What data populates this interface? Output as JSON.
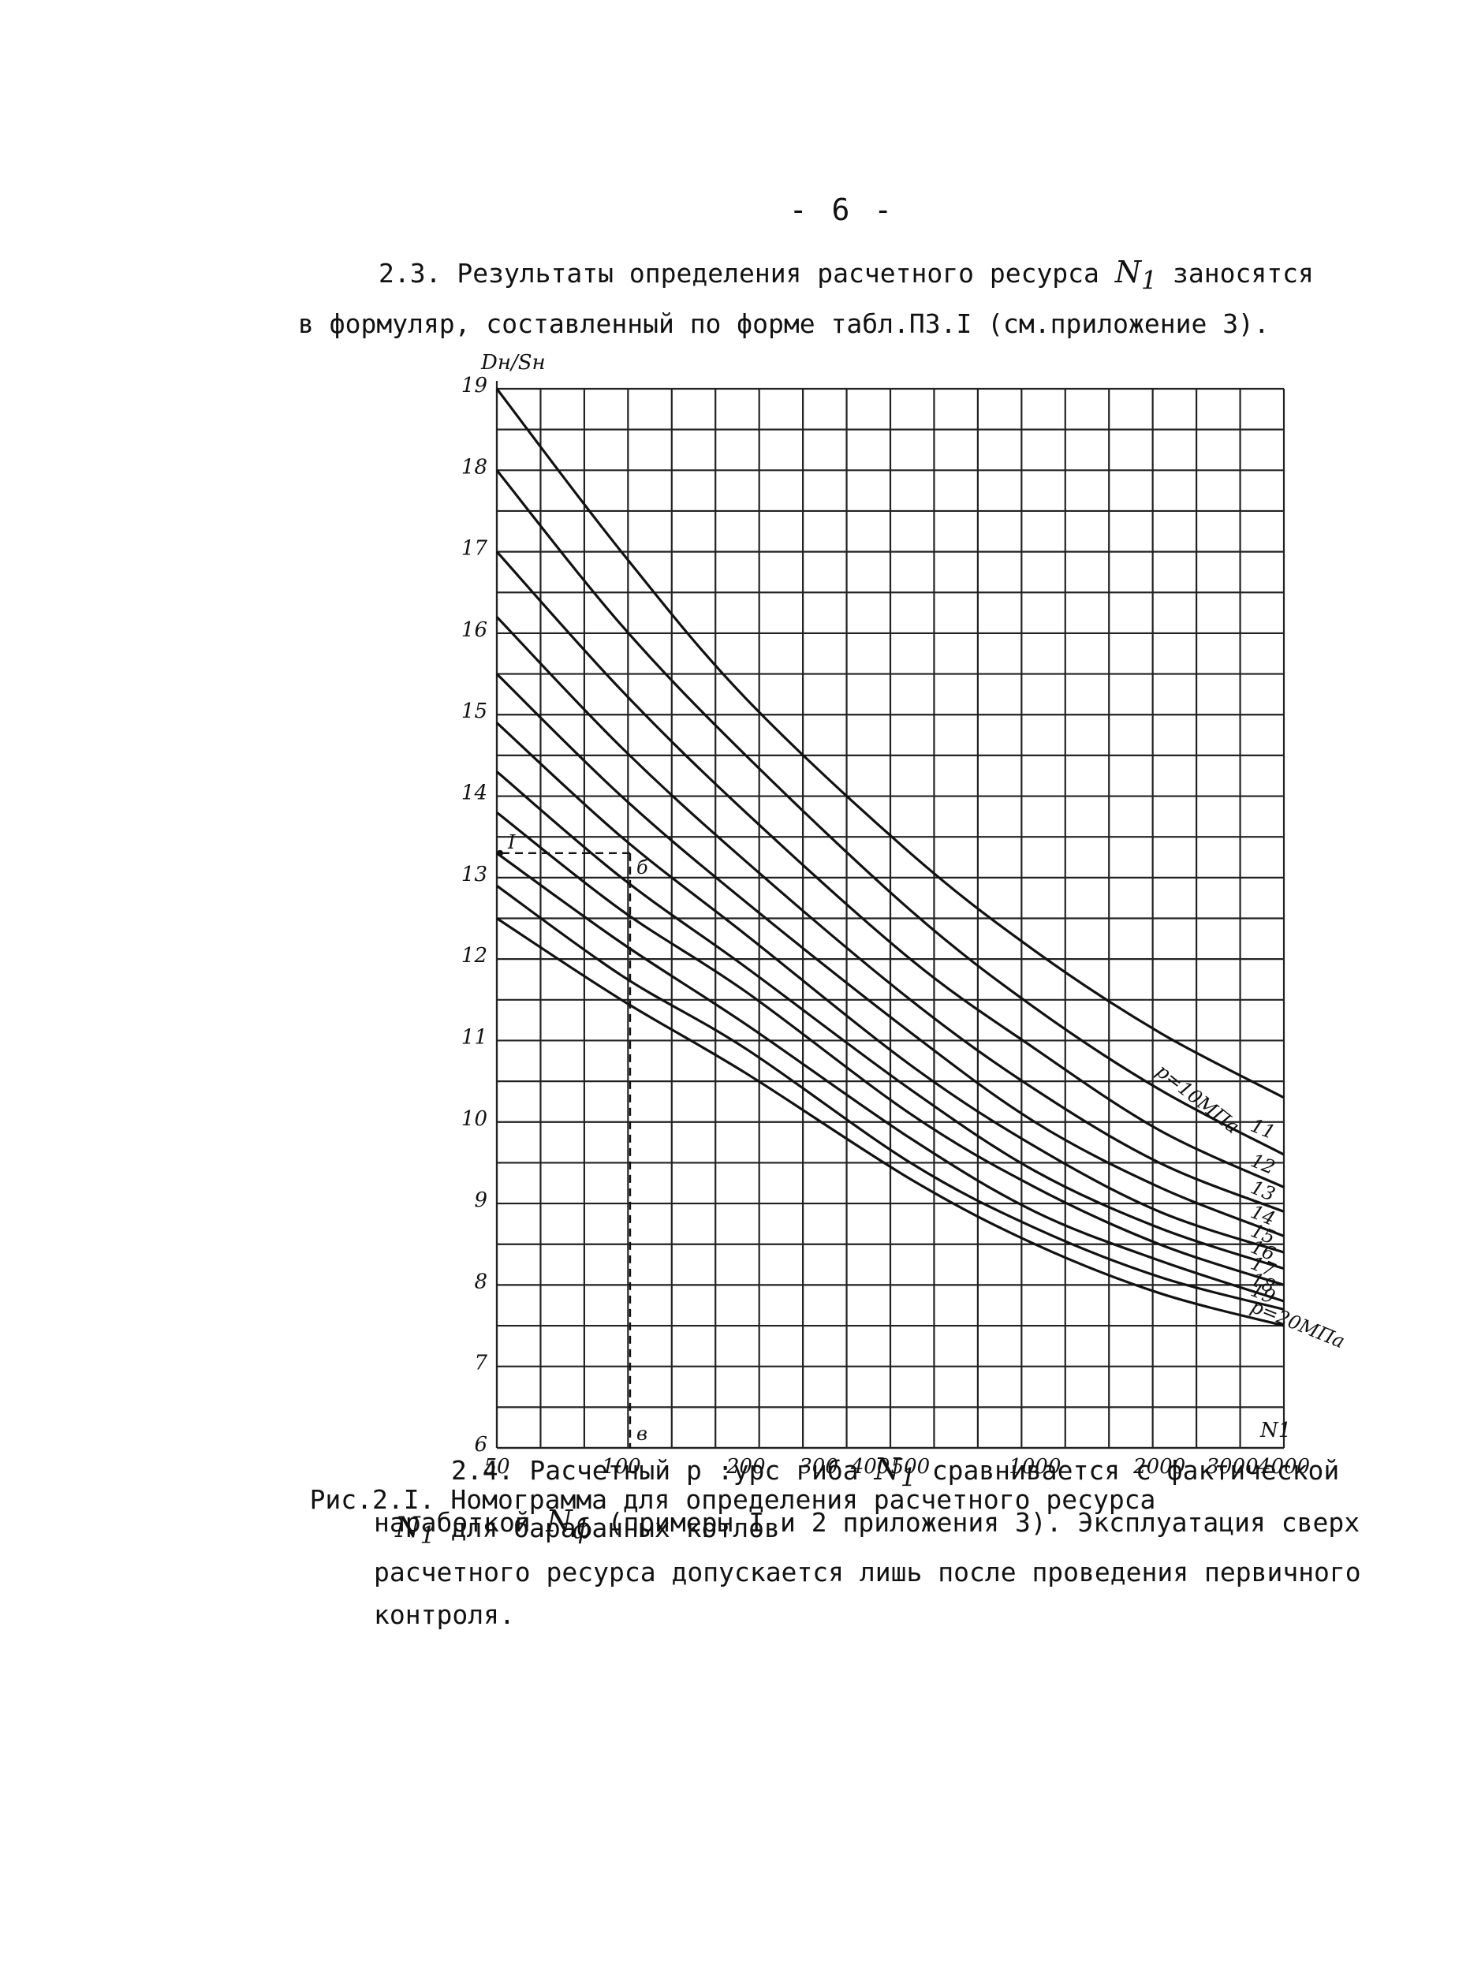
{
  "page_number": "- 6 -",
  "paragraph_2_3": {
    "line1_before": "2.3. Результаты определения расчетного ресурса ",
    "symbol": "N",
    "symbol_sub": "1",
    "line1_after": " заносятся",
    "line2": "в формуляр, составленный по форме табл.П3.I (см.приложение 3)."
  },
  "nomogram": {
    "y_axis_label": "Dн/Sн",
    "x_axis_label": "N1",
    "y_ticks": [
      "6",
      "7",
      "8",
      "9",
      "10",
      "11",
      "12",
      "13",
      "14",
      "15",
      "16",
      "17",
      "18",
      "19"
    ],
    "x_ticks": [
      "50",
      "100",
      "200",
      "300",
      "400",
      "500",
      "1000",
      "2000",
      "3000",
      "4000"
    ],
    "curve_labels": [
      "p=10МПа",
      "11",
      "12",
      "13",
      "14",
      "15",
      "16",
      "17",
      "18",
      "19",
      "p=20МПа"
    ],
    "example_marks": [
      "I",
      "б",
      "в"
    ]
  },
  "chart_data": {
    "type": "line",
    "xlabel": "N1",
    "ylabel": "Dн/Sн",
    "xscale": "log",
    "xlim": [
      50,
      4000
    ],
    "ylim": [
      6,
      19
    ],
    "grid": true,
    "series": [
      {
        "name": "p=10МПа",
        "x": [
          50,
          100,
          200,
          500,
          1000,
          2000,
          4000
        ],
        "y": [
          19.0,
          17.0,
          15.2,
          13.3,
          12.1,
          11.1,
          10.3
        ]
      },
      {
        "name": "11",
        "x": [
          50,
          100,
          200,
          500,
          1000,
          2000,
          4000
        ],
        "y": [
          18.0,
          16.1,
          14.5,
          12.6,
          11.4,
          10.4,
          9.6
        ]
      },
      {
        "name": "12",
        "x": [
          50,
          100,
          200,
          500,
          1000,
          2000,
          4000
        ],
        "y": [
          17.0,
          15.3,
          13.8,
          12.0,
          10.9,
          9.9,
          9.2
        ]
      },
      {
        "name": "13",
        "x": [
          50,
          100,
          200,
          500,
          1000,
          2000,
          4000
        ],
        "y": [
          16.2,
          14.6,
          13.2,
          11.5,
          10.4,
          9.5,
          8.9
        ]
      },
      {
        "name": "14",
        "x": [
          50,
          100,
          200,
          500,
          1000,
          2000,
          4000
        ],
        "y": [
          15.5,
          14.0,
          12.7,
          11.1,
          10.0,
          9.2,
          8.6
        ]
      },
      {
        "name": "15",
        "x": [
          50,
          100,
          200,
          500,
          1000,
          2000,
          4000
        ],
        "y": [
          14.9,
          13.5,
          12.3,
          10.7,
          9.7,
          8.9,
          8.4
        ]
      },
      {
        "name": "16",
        "x": [
          50,
          100,
          200,
          500,
          1000,
          2000,
          4000
        ],
        "y": [
          14.3,
          13.0,
          11.9,
          10.4,
          9.4,
          8.7,
          8.2
        ]
      },
      {
        "name": "17",
        "x": [
          50,
          100,
          200,
          500,
          1000,
          2000,
          4000
        ],
        "y": [
          13.8,
          12.6,
          11.6,
          10.1,
          9.2,
          8.5,
          8.0
        ]
      },
      {
        "name": "18",
        "x": [
          50,
          100,
          200,
          500,
          1000,
          2000,
          4000
        ],
        "y": [
          13.3,
          12.2,
          11.2,
          9.8,
          8.9,
          8.3,
          7.8
        ]
      },
      {
        "name": "19",
        "x": [
          50,
          100,
          200,
          500,
          1000,
          2000,
          4000
        ],
        "y": [
          12.9,
          11.8,
          10.9,
          9.5,
          8.7,
          8.1,
          7.7
        ]
      },
      {
        "name": "p=20МПа",
        "x": [
          50,
          100,
          200,
          500,
          1000,
          2000,
          4000
        ],
        "y": [
          12.5,
          11.5,
          10.6,
          9.3,
          8.5,
          7.9,
          7.5
        ]
      }
    ]
  },
  "caption": {
    "line1": "Рис.2.I. Номограмма для определения расчетного ресурса",
    "symbol": "N",
    "symbol_sub": "1",
    "line2_after": " для барабанных котлов"
  },
  "paragraph_2_4": {
    "line1_before": "2.4. Расчетный р :урс гиба ",
    "symbol": "N",
    "symbol_sub": "1",
    "line1_after": "  сравнивается с фактической",
    "line2_before": "наработкой ",
    "symbol2": "N",
    "symbol2_sub": "ф",
    "line2_after": " (примеры I и 2 приложения 3). Эксплуатация сверх",
    "line3": "расчетного ресурса допускается лишь после проведения первичного",
    "line4": "контроля."
  }
}
